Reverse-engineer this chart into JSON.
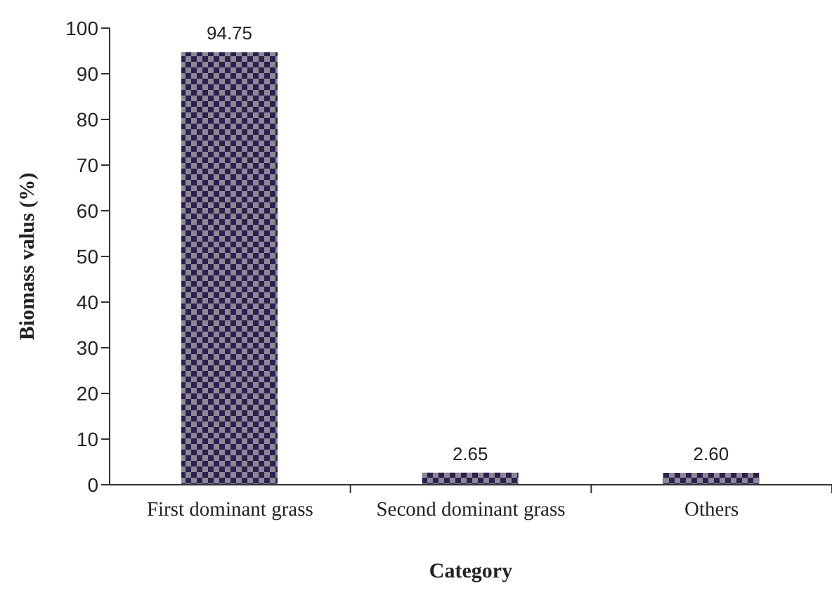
{
  "chart_data": {
    "type": "bar",
    "xlabel": "Category",
    "ylabel": "Biomass valus (%)",
    "categories": [
      "First dominant grass",
      "Second dominant grass",
      "Others"
    ],
    "values": [
      94.75,
      2.65,
      2.6
    ],
    "value_labels": [
      "94.75",
      "2.65",
      "2.60"
    ],
    "color": "#2b2050",
    "ylim": [
      0,
      100
    ],
    "yticks": [
      0,
      10,
      20,
      30,
      40,
      50,
      60,
      70,
      80,
      90,
      100
    ]
  }
}
